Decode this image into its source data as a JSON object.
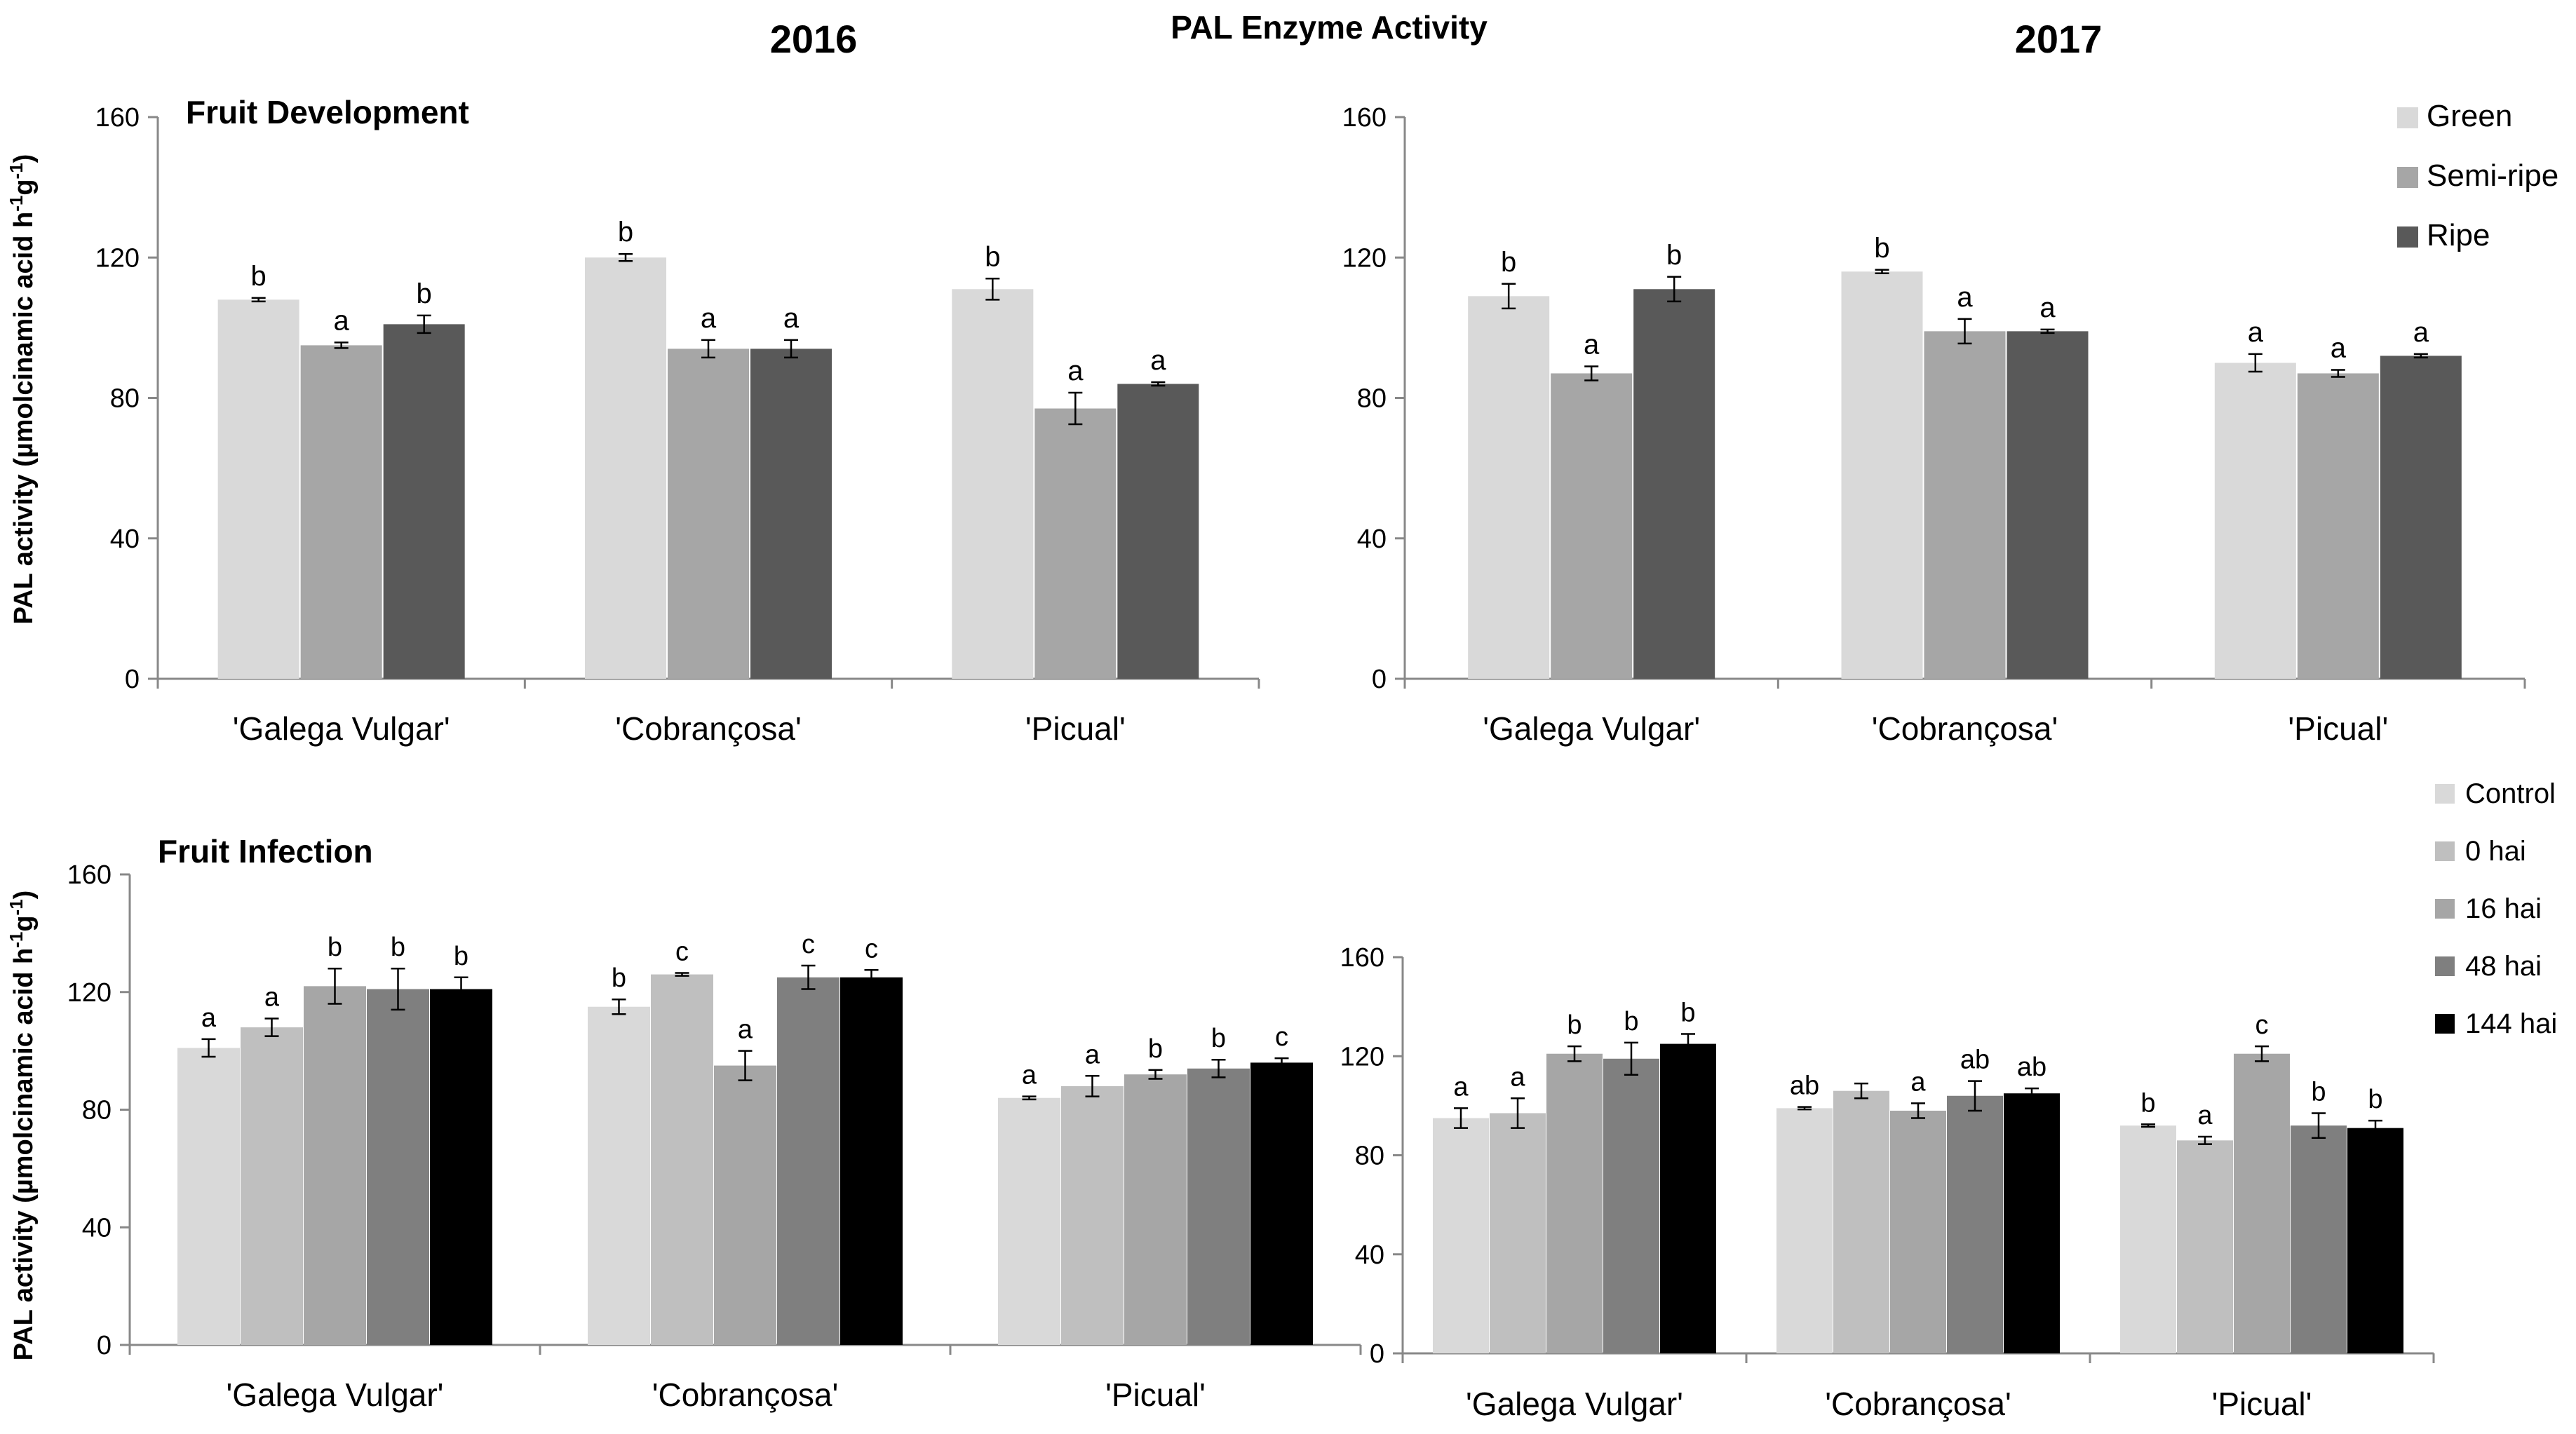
{
  "figure": {
    "title": "PAL Enzyme Activity",
    "col_titles": [
      "2016",
      "2017"
    ],
    "ylabel": "PAL activity (µmolcinamic acid h⁻¹g⁻¹)",
    "ylabel_main": "PAL activity (µmolcinamic acid h",
    "ylabel_sup1": "-1",
    "ylabel_mid": "g",
    "ylabel_sup2": "-1",
    "ylabel_end": ")",
    "row_titles": [
      "Fruit Development",
      "Fruit Infection"
    ],
    "legend_development": [
      "Green",
      "Semi-ripe",
      "Ripe"
    ],
    "legend_infection": [
      "Control",
      "0 hai",
      "16 hai",
      "48 hai",
      "144 hai"
    ],
    "series_colors_development": [
      "#d9d9d9",
      "#a6a6a6",
      "#595959"
    ],
    "series_colors_infection": [
      "#d9d9d9",
      "#bfbfbf",
      "#a6a6a6",
      "#7f7f7f",
      "#000000"
    ]
  },
  "chart_data": [
    {
      "type": "bar",
      "title": "Fruit Development",
      "year": "2016",
      "categories": [
        "'Galega Vulgar'",
        "'Cobrançosa'",
        "'Picual'"
      ],
      "ylim": [
        0,
        160
      ],
      "yticks": [
        0,
        40,
        80,
        120,
        160
      ],
      "series": [
        {
          "name": "Green",
          "values": [
            108,
            120,
            111
          ],
          "errors": [
            0.5,
            1,
            3
          ],
          "letters": [
            "b",
            "b",
            "b"
          ]
        },
        {
          "name": "Semi-ripe",
          "values": [
            95,
            94,
            77
          ],
          "errors": [
            0.8,
            2.5,
            4.5
          ],
          "letters": [
            "a",
            "a",
            "a"
          ]
        },
        {
          "name": "Ripe",
          "values": [
            101,
            94,
            84
          ],
          "errors": [
            2.5,
            2.5,
            0.5
          ],
          "letters": [
            "b",
            "a",
            "a"
          ]
        }
      ]
    },
    {
      "type": "bar",
      "title": "",
      "year": "2017",
      "categories": [
        "'Galega Vulgar'",
        "'Cobrançosa'",
        "'Picual'"
      ],
      "ylim": [
        0,
        160
      ],
      "yticks": [
        0,
        40,
        80,
        120,
        160
      ],
      "series": [
        {
          "name": "Green",
          "values": [
            109,
            116,
            90
          ],
          "errors": [
            3.5,
            0.5,
            2.5
          ],
          "letters": [
            "b",
            "b",
            "a"
          ]
        },
        {
          "name": "Semi-ripe",
          "values": [
            87,
            99,
            87
          ],
          "errors": [
            2,
            3.5,
            1
          ],
          "letters": [
            "a",
            "a",
            "a"
          ]
        },
        {
          "name": "Ripe",
          "values": [
            111,
            99,
            92
          ],
          "errors": [
            3.5,
            0.5,
            0.5
          ],
          "letters": [
            "b",
            "a",
            "a"
          ]
        }
      ]
    },
    {
      "type": "bar",
      "title": "Fruit Infection",
      "year": "2016",
      "categories": [
        "'Galega Vulgar'",
        "'Cobrançosa'",
        "'Picual'"
      ],
      "ylim": [
        0,
        160
      ],
      "yticks": [
        0,
        40,
        80,
        120,
        160
      ],
      "series": [
        {
          "name": "Control",
          "values": [
            101,
            115,
            84
          ],
          "errors": [
            3,
            2.5,
            0.5
          ],
          "letters": [
            "a",
            "b",
            "a"
          ]
        },
        {
          "name": "0 hai",
          "values": [
            108,
            126,
            88
          ],
          "errors": [
            3,
            0.5,
            3.5
          ],
          "letters": [
            "a",
            "c",
            "a"
          ]
        },
        {
          "name": "16 hai",
          "values": [
            122,
            95,
            92
          ],
          "errors": [
            6,
            5,
            1.5
          ],
          "letters": [
            "b",
            "a",
            "b"
          ]
        },
        {
          "name": "48 hai",
          "values": [
            121,
            125,
            94
          ],
          "errors": [
            7,
            4,
            3
          ],
          "letters": [
            "b",
            "c",
            "b"
          ]
        },
        {
          "name": "144 hai",
          "values": [
            121,
            125,
            96
          ],
          "errors": [
            4,
            2.5,
            1.5
          ],
          "letters": [
            "b",
            "c",
            "c"
          ]
        }
      ]
    },
    {
      "type": "bar",
      "title": "",
      "year": "2017",
      "categories": [
        "'Galega Vulgar'",
        "'Cobrançosa'",
        "'Picual'"
      ],
      "ylim": [
        0,
        160
      ],
      "yticks": [
        0,
        40,
        80,
        120,
        160
      ],
      "series": [
        {
          "name": "Control",
          "values": [
            95,
            99,
            92
          ],
          "errors": [
            4,
            0.5,
            0.5
          ],
          "letters": [
            "a",
            "ab",
            "b"
          ]
        },
        {
          "name": "0 hai",
          "values": [
            97,
            106,
            86
          ],
          "errors": [
            6,
            3,
            1.5
          ],
          "letters": [
            "a",
            "",
            "a"
          ]
        },
        {
          "name": "16 hai",
          "values": [
            121,
            98,
            121
          ],
          "errors": [
            3,
            3,
            3
          ],
          "letters": [
            "b",
            "a",
            "c"
          ]
        },
        {
          "name": "48 hai",
          "values": [
            119,
            104,
            92
          ],
          "errors": [
            6.5,
            6,
            5
          ],
          "letters": [
            "b",
            "ab",
            "b"
          ]
        },
        {
          "name": "144 hai",
          "values": [
            125,
            105,
            91
          ],
          "errors": [
            4,
            2,
            3
          ],
          "letters": [
            "b",
            "ab",
            "b"
          ]
        }
      ]
    }
  ]
}
